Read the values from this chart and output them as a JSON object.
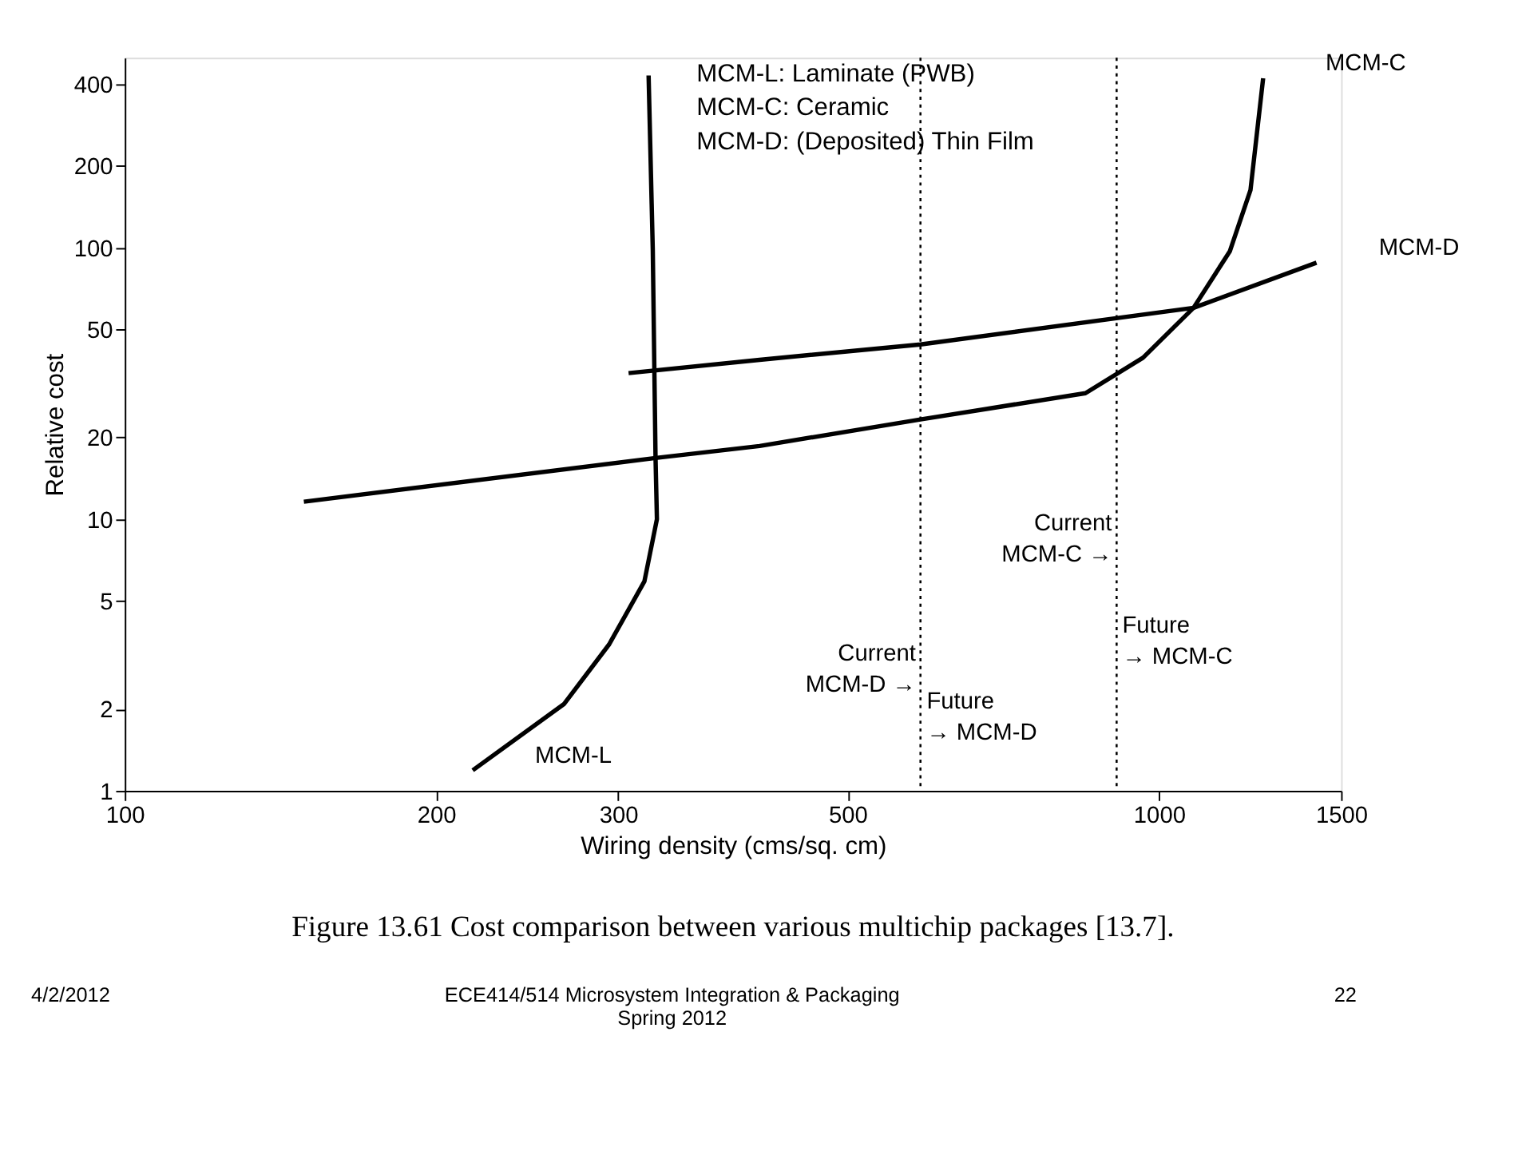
{
  "chart_data": {
    "type": "line",
    "title": "Figure 13.61 Cost comparison between various multichip packages [13.7].",
    "xlabel": "Wiring density (cms/sq. cm)",
    "ylabel": "Relative cost",
    "series": [
      {
        "name": "MCM-L",
        "color": "#000000",
        "x": [
          321,
          324,
          326,
          327,
          318,
          294,
          266,
          217
        ],
        "values": [
          430,
          98,
          16.8,
          10,
          5.9,
          3.46,
          2.09,
          1.19
        ]
      },
      {
        "name": "MCM-C",
        "color": "#000000",
        "x": [
          149,
          326,
          411,
          588,
          849,
          965,
          1080,
          1171,
          1226,
          1261
        ],
        "values": [
          11.6,
          16.8,
          18.6,
          23.3,
          29.1,
          39.3,
          60,
          97,
          163,
          420
        ]
      },
      {
        "name": "MCM-D",
        "color": "#000000",
        "x": [
          307,
          411,
          588,
          1080,
          1420
        ],
        "values": [
          34.5,
          38.6,
          44,
          60,
          88
        ]
      }
    ],
    "xlim": [
      100,
      1500
    ],
    "xticks": [
      100,
      200,
      300,
      500,
      1000,
      1500
    ],
    "log": "xy",
    "ylim": [
      1,
      500
    ],
    "yticks": [
      1,
      2,
      5,
      10,
      20,
      50,
      100,
      200,
      400
    ],
    "grid": false,
    "marker": "none",
    "line_style": "solid",
    "ref_lines": [
      {
        "axis": "x",
        "value": 588,
        "color": "#000000",
        "line_style": "dotted"
      },
      {
        "axis": "x",
        "value": 910,
        "color": "#000000",
        "line_style": "dotted"
      }
    ],
    "annotations": [
      "MCM-L: Laminate (PWB)",
      "MCM-C: Ceramic",
      "MCM-D: (Deposited) Thin Film",
      {
        "text": "Current\nMCM-C →",
        "x": 910,
        "y": 10
      },
      {
        "text": "Future\n→ MCM-C",
        "x": 912,
        "y": 4.2
      },
      {
        "text": "Current\nMCM-D →",
        "x": 588,
        "y": 3.3
      },
      {
        "text": "Future\n→ MCM-D",
        "x": 590,
        "y": 2.2
      },
      "4/2/2012",
      "ECE414/514 Microsystem Integration & Packaging\nSpring 2012",
      "22"
    ]
  }
}
